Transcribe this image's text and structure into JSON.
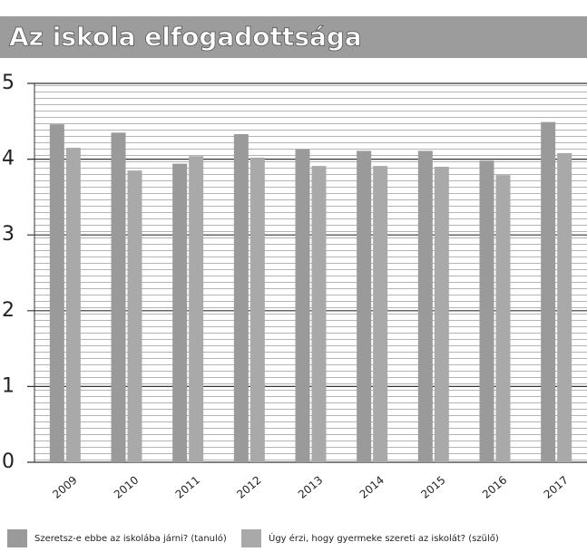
{
  "chart_data": {
    "type": "bar",
    "title": "Az iskola elfogadottsága",
    "categories": [
      "2009",
      "2010",
      "2011",
      "2012",
      "2013",
      "2014",
      "2015",
      "2016",
      "2017"
    ],
    "series": [
      {
        "name": "Szeretsz-e ebbe az iskolába járni? (tanuló)",
        "color": "#9a9a9a",
        "values": [
          4.46,
          4.35,
          3.94,
          4.33,
          4.13,
          4.11,
          4.11,
          3.98,
          4.49
        ]
      },
      {
        "name": "Úgy érzi, hogy gyermeke szereti az iskolát? (szülő)",
        "color": "#a9a9a9",
        "values": [
          4.15,
          3.85,
          4.04,
          4.02,
          3.91,
          3.91,
          3.9,
          3.79,
          4.08
        ]
      }
    ],
    "ylim": [
      0,
      5
    ],
    "yticks": [
      0,
      1,
      2,
      3,
      4,
      5
    ],
    "grid": true,
    "legend": "bottom"
  }
}
